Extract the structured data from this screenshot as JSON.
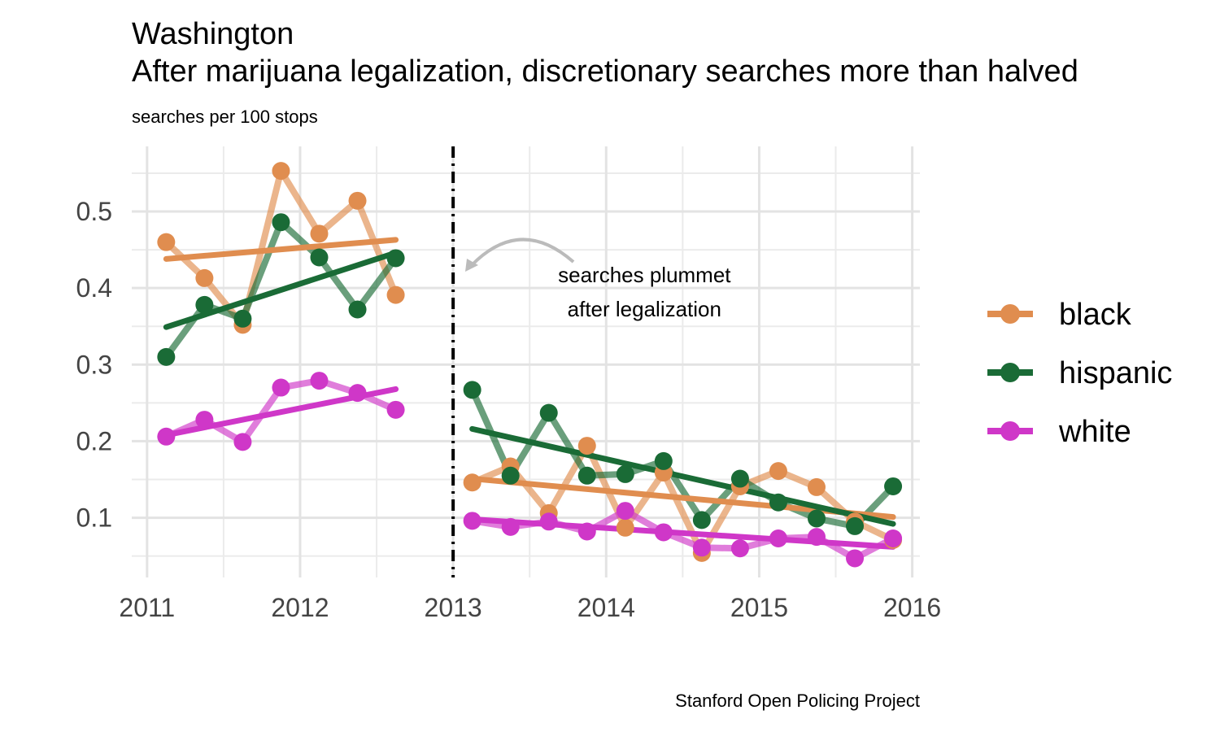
{
  "chart_data": {
    "type": "line",
    "title": "Washington",
    "subtitle": "After marijuana legalization, discretionary searches more than halved",
    "ylabel": "searches per 100 stops",
    "caption": "Stanford Open Policing Project",
    "xlim": [
      2010.9,
      2016.05
    ],
    "ylim": [
      0.022,
      0.585
    ],
    "x_ticks": [
      2011,
      2012,
      2013,
      2014,
      2015,
      2016
    ],
    "x_tick_labels": [
      "2011",
      "2012",
      "2013",
      "2014",
      "2015",
      "2016"
    ],
    "y_ticks": [
      0.1,
      0.2,
      0.3,
      0.4,
      0.5
    ],
    "y_tick_labels": [
      "0.1",
      "0.2",
      "0.3",
      "0.4",
      "0.5"
    ],
    "grid": true,
    "legalization_x": 2013,
    "annotation": {
      "lines": [
        "searches plummet",
        "after legalization"
      ],
      "x": 2014.25,
      "y": 0.395
    },
    "legend": {
      "position": "right"
    },
    "series": [
      {
        "name": "black",
        "color": "#E08D4F",
        "segments": [
          {
            "x": [
              2011.125,
              2011.375,
              2011.625,
              2011.875,
              2012.125,
              2012.375,
              2012.625
            ],
            "y": [
              0.46,
              0.413,
              0.352,
              0.553,
              0.471,
              0.514,
              0.391
            ],
            "trend": [
              0.438,
              0.463
            ]
          },
          {
            "x": [
              2013.125,
              2013.375,
              2013.625,
              2013.875,
              2014.125,
              2014.375,
              2014.625,
              2014.875,
              2015.125,
              2015.375,
              2015.625,
              2015.875
            ],
            "y": [
              0.146,
              0.167,
              0.106,
              0.194,
              0.087,
              0.159,
              0.054,
              0.141,
              0.161,
              0.14,
              0.095,
              0.071
            ],
            "trend": [
              0.151,
              0.101
            ]
          }
        ]
      },
      {
        "name": "hispanic",
        "color": "#1A6B36",
        "segments": [
          {
            "x": [
              2011.125,
              2011.375,
              2011.625,
              2011.875,
              2012.125,
              2012.375,
              2012.625
            ],
            "y": [
              0.31,
              0.378,
              0.36,
              0.486,
              0.44,
              0.372,
              0.439
            ],
            "trend": [
              0.349,
              0.446
            ]
          },
          {
            "x": [
              2013.125,
              2013.375,
              2013.625,
              2013.875,
              2014.125,
              2014.375,
              2014.625,
              2014.875,
              2015.125,
              2015.375,
              2015.625,
              2015.875
            ],
            "y": [
              0.267,
              0.155,
              0.237,
              0.155,
              0.157,
              0.174,
              0.097,
              0.151,
              0.12,
              0.099,
              0.089,
              0.141
            ],
            "trend": [
              0.216,
              0.092
            ]
          }
        ]
      },
      {
        "name": "white",
        "color": "#CF37C8",
        "segments": [
          {
            "x": [
              2011.125,
              2011.375,
              2011.625,
              2011.875,
              2012.125,
              2012.375,
              2012.625
            ],
            "y": [
              0.206,
              0.228,
              0.199,
              0.27,
              0.279,
              0.263,
              0.241
            ],
            "trend": [
              0.208,
              0.268
            ]
          },
          {
            "x": [
              2013.125,
              2013.375,
              2013.625,
              2013.875,
              2014.125,
              2014.375,
              2014.625,
              2014.875,
              2015.125,
              2015.375,
              2015.625,
              2015.875
            ],
            "y": [
              0.096,
              0.088,
              0.095,
              0.082,
              0.109,
              0.081,
              0.061,
              0.06,
              0.073,
              0.075,
              0.047,
              0.073
            ],
            "trend": [
              0.098,
              0.062
            ]
          }
        ]
      }
    ]
  }
}
